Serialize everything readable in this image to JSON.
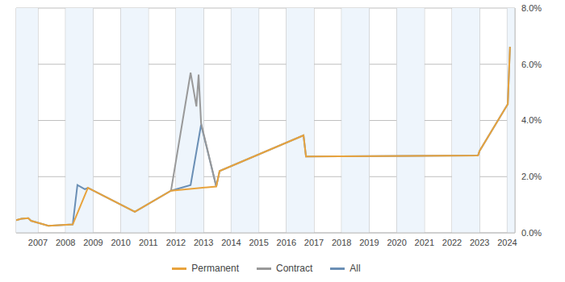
{
  "chart_data": {
    "type": "line",
    "xlim": [
      2006.21,
      2024.28
    ],
    "xticks": [
      2007,
      2008,
      2009,
      2010,
      2011,
      2012,
      2013,
      2014,
      2015,
      2016,
      2017,
      2018,
      2019,
      2020,
      2021,
      2022,
      2023,
      2024
    ],
    "ylim": [
      0,
      8
    ],
    "yticks": [
      {
        "value": 0,
        "label": "0.0%"
      },
      {
        "value": 2,
        "label": "2.0%"
      },
      {
        "value": 4,
        "label": "4.0%"
      },
      {
        "value": 6,
        "label": "6.0%"
      },
      {
        "value": 8,
        "label": "8.0%"
      }
    ],
    "grid": true,
    "legend": "bottom",
    "series": [
      {
        "name": "Permanent",
        "color": "#e8a33d",
        "x": [
          2006.21,
          2006.4,
          2006.65,
          2006.75,
          2007.38,
          2008.26,
          2008.81,
          2010.51,
          2011.82,
          2013.46,
          2013.58,
          2016.62,
          2016.71,
          2022.94,
          2023.0,
          2024.02,
          2024.1
        ],
        "values": [
          0.45,
          0.5,
          0.52,
          0.43,
          0.25,
          0.3,
          1.6,
          0.75,
          1.5,
          1.65,
          2.2,
          3.47,
          2.72,
          2.75,
          2.92,
          4.58,
          6.62
        ]
      },
      {
        "name": "Contract",
        "color": "#999999",
        "x": [
          2011.82,
          2012.53,
          2012.74,
          2012.82,
          2012.91,
          2013.46
        ],
        "values": [
          1.5,
          5.7,
          4.5,
          5.63,
          3.9,
          1.65
        ]
      },
      {
        "name": "All",
        "color": "#6a8fb5",
        "x": [
          2006.21,
          2006.4,
          2006.65,
          2006.75,
          2007.38,
          2008.26,
          2008.43,
          2008.7,
          2008.81,
          2010.51,
          2011.82,
          2012.53,
          2012.91,
          2013.46,
          2013.58,
          2016.62,
          2016.71,
          2022.94,
          2023.0,
          2024.02,
          2024.1
        ],
        "values": [
          0.45,
          0.5,
          0.52,
          0.43,
          0.25,
          0.3,
          1.7,
          1.55,
          1.6,
          0.75,
          1.5,
          1.7,
          3.85,
          1.65,
          2.2,
          3.47,
          2.72,
          2.75,
          2.92,
          4.58,
          6.62
        ]
      }
    ]
  }
}
